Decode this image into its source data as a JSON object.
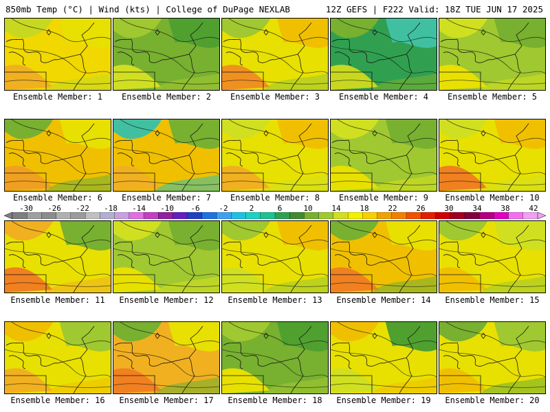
{
  "header": {
    "left": "850mb Temp (°C) | Wind (kts) | College of DuPage NEXLAB",
    "right": "12Z GEFS | F222 Valid: 18Z TUE JUN 17 2025"
  },
  "colorbar": {
    "ticks": [
      "-30",
      "-26",
      "-22",
      "-18",
      "-14",
      "-10",
      "-6",
      "-2",
      "2",
      "6",
      "10",
      "14",
      "18",
      "22",
      "26",
      "30",
      "34",
      "38",
      "42"
    ],
    "colors": [
      "#7f7f7f",
      "#a0a0a0",
      "#8c8c8c",
      "#b0b0b0",
      "#9b9b9b",
      "#c0c0c0",
      "#b0b0d0",
      "#c8a0e0",
      "#e070e0",
      "#c040c0",
      "#9020a0",
      "#6020c0",
      "#2040c0",
      "#2070e0",
      "#40a0f0",
      "#20c0e0",
      "#20d0c0",
      "#20c090",
      "#30a050",
      "#408a30",
      "#78b030",
      "#a0c830",
      "#d0e020",
      "#f0f000",
      "#f8d000",
      "#f0a000",
      "#f08000",
      "#f05000",
      "#e02000",
      "#d00000",
      "#a00020",
      "#800040",
      "#b00080",
      "#e000c0",
      "#f070f0",
      "#f0a0f0"
    ]
  },
  "members": [
    {
      "label": "Ensemble Member: 1",
      "fill": [
        "#f0d800",
        "#e8e000",
        "#c8d820",
        "#f0b020"
      ]
    },
    {
      "label": "Ensemble Member: 2",
      "fill": [
        "#78b030",
        "#50a030",
        "#a0c830",
        "#d0e020"
      ]
    },
    {
      "label": "Ensemble Member: 3",
      "fill": [
        "#e8e000",
        "#f0c000",
        "#a0c830",
        "#f09020"
      ]
    },
    {
      "label": "Ensemble Member: 4",
      "fill": [
        "#30a050",
        "#40c0a0",
        "#78b030",
        "#c8d820"
      ]
    },
    {
      "label": "Ensemble Member: 5",
      "fill": [
        "#a0c830",
        "#78b030",
        "#d0e020",
        "#e8e000"
      ]
    },
    {
      "label": "Ensemble Member: 6",
      "fill": [
        "#f0c000",
        "#e8e000",
        "#78b030",
        "#f0a020"
      ]
    },
    {
      "label": "Ensemble Member: 7",
      "fill": [
        "#f0c000",
        "#78b030",
        "#40c0a0",
        "#f0b020"
      ]
    },
    {
      "label": "Ensemble Member: 8",
      "fill": [
        "#e8e000",
        "#f0c000",
        "#d0e020",
        "#f0b020"
      ]
    },
    {
      "label": "Ensemble Member: 9",
      "fill": [
        "#a0c830",
        "#78b030",
        "#d0e020",
        "#e8e000"
      ]
    },
    {
      "label": "Ensemble Member: 10",
      "fill": [
        "#e8e000",
        "#f0c000",
        "#d0e020",
        "#f08020"
      ]
    },
    {
      "label": "Ensemble Member: 11",
      "fill": [
        "#e8e000",
        "#78b030",
        "#f0b020",
        "#f08020"
      ]
    },
    {
      "label": "Ensemble Member: 12",
      "fill": [
        "#a0c830",
        "#78b030",
        "#d0e020",
        "#e8e000"
      ]
    },
    {
      "label": "Ensemble Member: 13",
      "fill": [
        "#e8e000",
        "#f0c000",
        "#a0c830",
        "#d0e020"
      ]
    },
    {
      "label": "Ensemble Member: 14",
      "fill": [
        "#f0c000",
        "#e8e000",
        "#78b030",
        "#f08020"
      ]
    },
    {
      "label": "Ensemble Member: 15",
      "fill": [
        "#e8e000",
        "#d0e020",
        "#a0c830",
        "#f0c000"
      ]
    },
    {
      "label": "Ensemble Member: 16",
      "fill": [
        "#e8e000",
        "#a0c830",
        "#f0c000",
        "#f0b020"
      ]
    },
    {
      "label": "Ensemble Member: 17",
      "fill": [
        "#f0b020",
        "#e8e000",
        "#78b030",
        "#f08020"
      ]
    },
    {
      "label": "Ensemble Member: 18",
      "fill": [
        "#78b030",
        "#50a030",
        "#a0c830",
        "#e8e000"
      ]
    },
    {
      "label": "Ensemble Member: 19",
      "fill": [
        "#e8e000",
        "#50a030",
        "#f0c000",
        "#d0e020"
      ]
    },
    {
      "label": "Ensemble Member: 20",
      "fill": [
        "#e8e000",
        "#a0c830",
        "#78b030",
        "#f0c000"
      ]
    }
  ]
}
